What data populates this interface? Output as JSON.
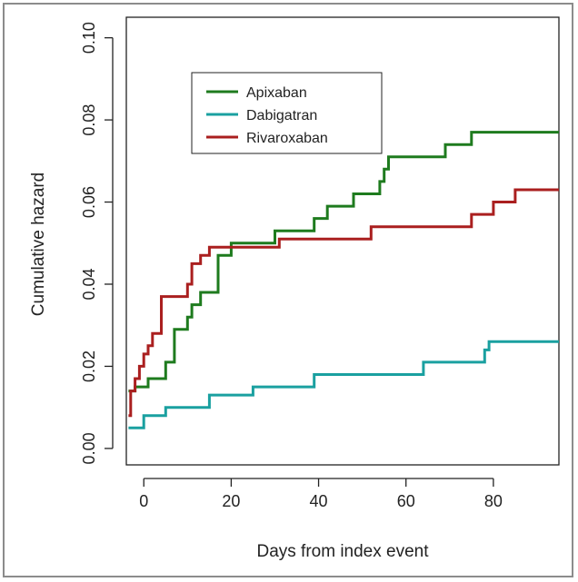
{
  "chart_data": {
    "type": "line",
    "step": true,
    "xlabel": "Days from index event",
    "ylabel": "Cumulative hazard",
    "xlim": [
      -4,
      95
    ],
    "ylim": [
      -0.004,
      0.105
    ],
    "x_ticks": [
      0,
      20,
      40,
      60,
      80
    ],
    "x_tick_labels": [
      "0",
      "20",
      "40",
      "60",
      "80"
    ],
    "y_ticks": [
      0.0,
      0.02,
      0.04,
      0.06,
      0.08,
      0.1
    ],
    "y_tick_labels": [
      "0.00",
      "0.02",
      "0.04",
      "0.06",
      "0.08",
      "0.10"
    ],
    "grid": false,
    "legend": "top-left",
    "series": [
      {
        "name": "Apixaban",
        "color": "#1e7b1e",
        "points": [
          [
            -3.5,
            0.014
          ],
          [
            -2,
            0.015
          ],
          [
            1,
            0.017
          ],
          [
            5,
            0.021
          ],
          [
            7,
            0.029
          ],
          [
            10,
            0.032
          ],
          [
            11,
            0.035
          ],
          [
            13,
            0.038
          ],
          [
            17,
            0.047
          ],
          [
            20,
            0.05
          ],
          [
            30,
            0.053
          ],
          [
            39,
            0.056
          ],
          [
            42,
            0.059
          ],
          [
            48,
            0.062
          ],
          [
            54,
            0.065
          ],
          [
            55,
            0.068
          ],
          [
            56,
            0.071
          ],
          [
            57,
            0.071
          ],
          [
            69,
            0.074
          ],
          [
            75,
            0.077
          ],
          [
            95,
            0.077
          ]
        ]
      },
      {
        "name": "Dabigatran",
        "color": "#1aa0a0",
        "points": [
          [
            -3.5,
            0.005
          ],
          [
            0,
            0.008
          ],
          [
            5,
            0.01
          ],
          [
            15,
            0.013
          ],
          [
            25,
            0.015
          ],
          [
            39,
            0.018
          ],
          [
            64,
            0.021
          ],
          [
            78,
            0.024
          ],
          [
            79,
            0.026
          ],
          [
            95,
            0.026
          ]
        ]
      },
      {
        "name": "Rivaroxaban",
        "color": "#aa1f1f",
        "points": [
          [
            -3.5,
            0.008
          ],
          [
            -3,
            0.014
          ],
          [
            -2,
            0.017
          ],
          [
            -1,
            0.02
          ],
          [
            0,
            0.023
          ],
          [
            1,
            0.025
          ],
          [
            2,
            0.028
          ],
          [
            4,
            0.037
          ],
          [
            10,
            0.04
          ],
          [
            11,
            0.045
          ],
          [
            13,
            0.047
          ],
          [
            15,
            0.049
          ],
          [
            31,
            0.051
          ],
          [
            52,
            0.054
          ],
          [
            75,
            0.057
          ],
          [
            80,
            0.06
          ],
          [
            85,
            0.063
          ],
          [
            95,
            0.063
          ]
        ]
      }
    ]
  }
}
